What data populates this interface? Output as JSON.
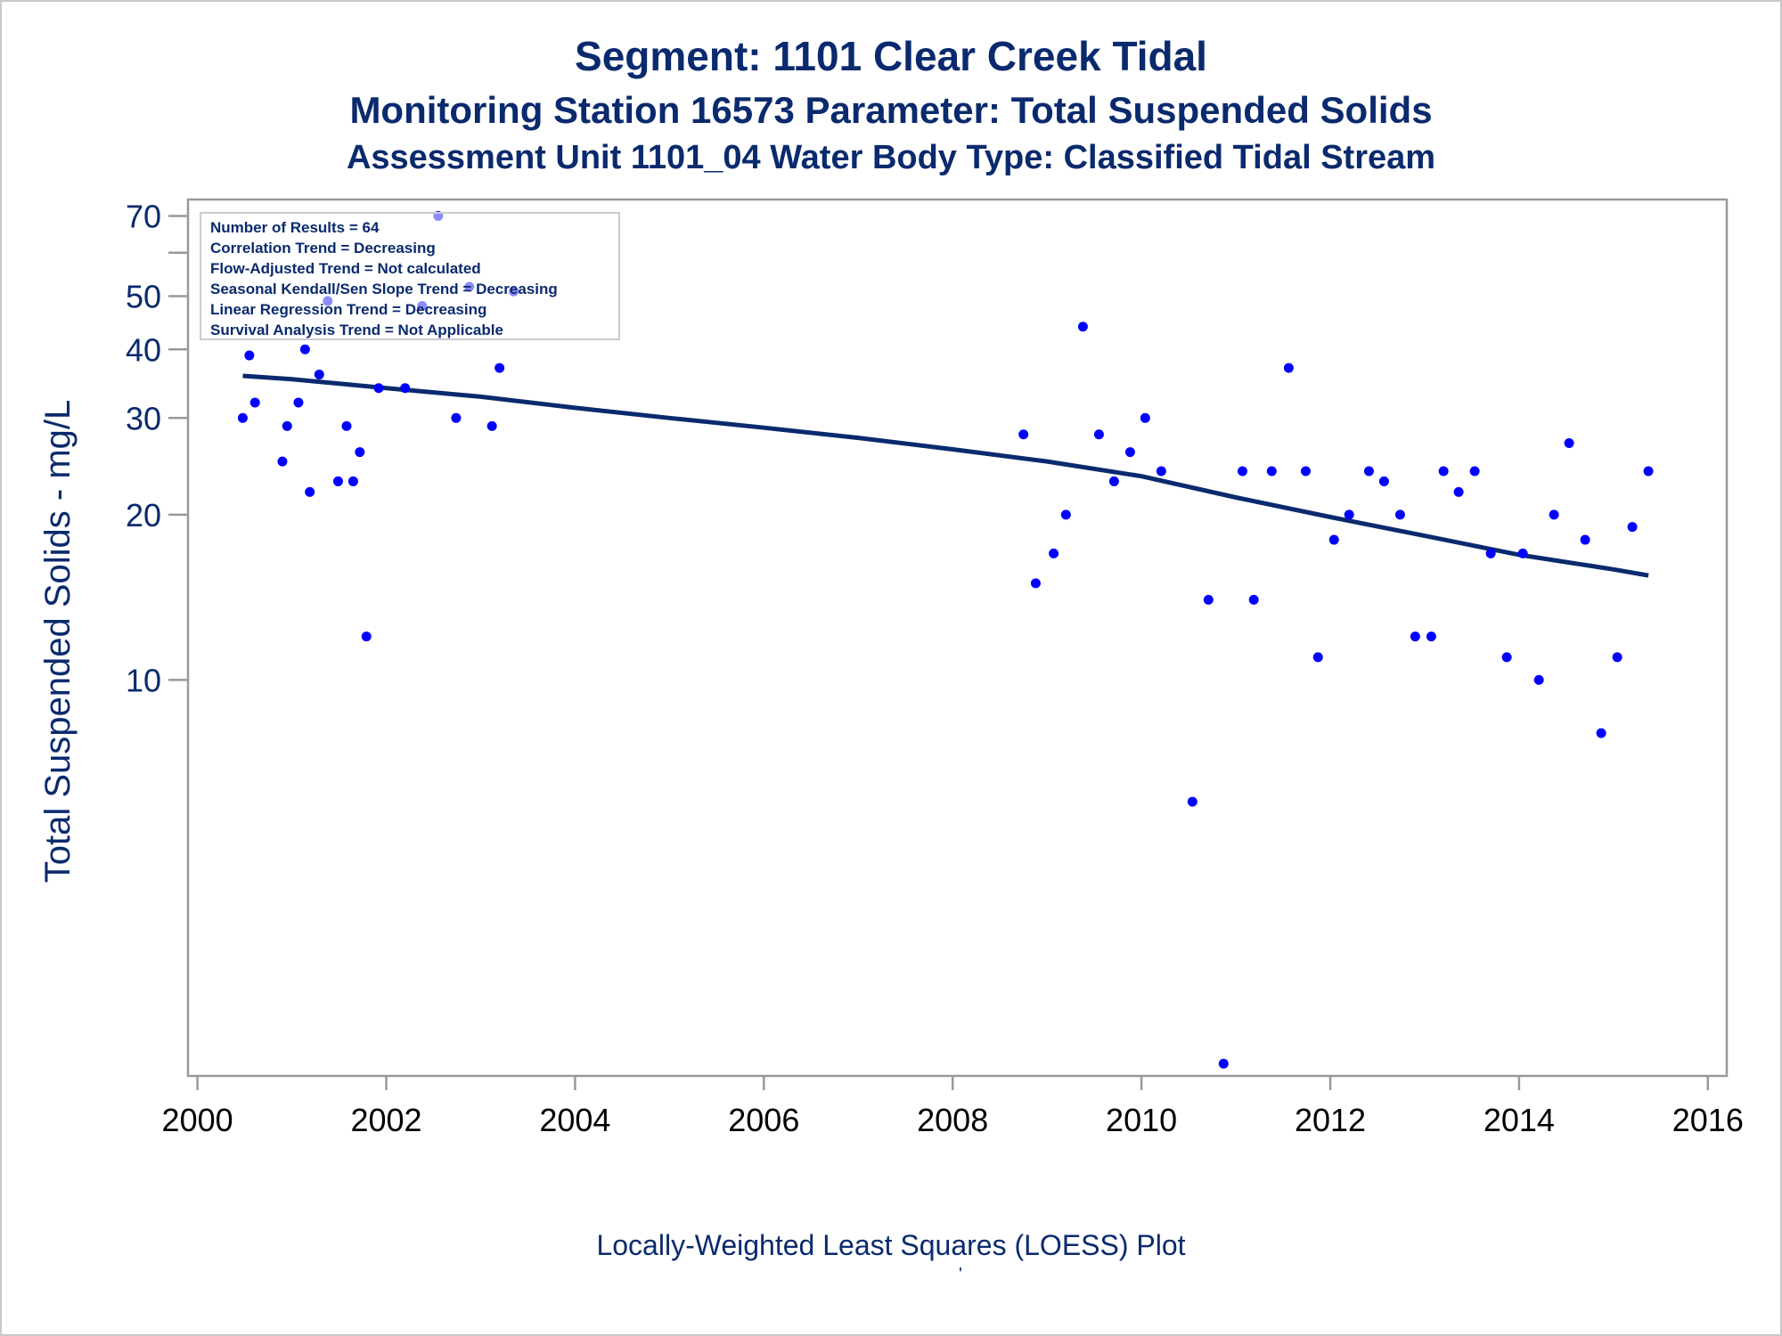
{
  "title": "Segment: 1101  Clear Creek Tidal",
  "subtitle1": "Monitoring Station 16573 Parameter: Total Suspended Solids",
  "subtitle2": "Assessment Unit 1101_04   Water Body Type: Classified Tidal Stream",
  "footnote": "Locally-Weighted Least Squares (LOESS) Plot",
  "footnote_mark": "'",
  "colors": {
    "text": "#0a2a6e",
    "points": "#0000ff",
    "trend": "#0a2a6e",
    "frame": "#999999"
  },
  "chart_data": {
    "type": "scatter",
    "title": "Segment: 1101  Clear Creek Tidal",
    "ylabel": "Total Suspended Solids - mg/L",
    "xlabel": "",
    "x_ticks": [
      2000,
      2002,
      2004,
      2006,
      2008,
      2010,
      2012,
      2014,
      2016
    ],
    "y_ticks": [
      10,
      20,
      30,
      40,
      50,
      70
    ],
    "y_minor_ticks": [
      60
    ],
    "xlim": [
      1999.9,
      2016.2
    ],
    "ylim": [
      1.9,
      75
    ],
    "y_scale": "log",
    "grid": false,
    "legend_title": "",
    "legend": [
      "Number of Results = 64",
      "Correlation Trend = Decreasing",
      "Flow-Adjusted Trend = Not calculated",
      "Seasonal Kendall/Sen Slope Trend = Decreasing",
      "Linear Regression Trend = Decreasing",
      "Survival Analysis Trend = Not Applicable"
    ],
    "legend_position": "top-left",
    "series": [
      {
        "type": "scatter",
        "x": [
          2000.48,
          2000.55,
          2000.61,
          2000.9,
          2000.95,
          2001.07,
          2001.14,
          2001.19,
          2001.29,
          2001.38,
          2001.49,
          2001.58,
          2001.65,
          2001.72,
          2001.79,
          2001.92,
          2002.2,
          2002.38,
          2002.55,
          2002.74,
          2002.88,
          2003.12,
          2003.2,
          2003.35,
          2008.75,
          2008.88,
          2009.07,
          2009.2,
          2009.38,
          2009.55,
          2009.71,
          2009.88,
          2010.04,
          2010.21,
          2010.54,
          2010.71,
          2010.87,
          2011.07,
          2011.19,
          2011.38,
          2011.56,
          2011.74,
          2011.87,
          2012.04,
          2012.2,
          2012.41,
          2012.57,
          2012.74,
          2012.9,
          2013.07,
          2013.2,
          2013.36,
          2013.53,
          2013.7,
          2013.87,
          2014.04,
          2014.21,
          2014.37,
          2014.53,
          2014.7,
          2014.87,
          2015.04,
          2015.2,
          2015.37
        ],
        "y": [
          30,
          39,
          32,
          25,
          29,
          32,
          40,
          22,
          36,
          49,
          23,
          29,
          23,
          26,
          12,
          34,
          34,
          48,
          70,
          30,
          52,
          29,
          37,
          51,
          28,
          15,
          17,
          20,
          44,
          28,
          23,
          26,
          30,
          24,
          6,
          14,
          2,
          24,
          14,
          24,
          37,
          24,
          11,
          18,
          20,
          24,
          23,
          20,
          12,
          12,
          24,
          22,
          24,
          17,
          11,
          17,
          10,
          20,
          27,
          18,
          8,
          11,
          19,
          24
        ]
      },
      {
        "type": "line",
        "name": "",
        "x": [
          2000.48,
          2001,
          2002,
          2003,
          2004,
          2005,
          2006,
          2007,
          2008,
          2009,
          2010,
          2011,
          2012,
          2013,
          2014,
          2015,
          2015.37
        ],
        "y": [
          35.8,
          35.3,
          34.0,
          32.8,
          31.3,
          30.0,
          28.8,
          27.6,
          26.3,
          25.0,
          23.5,
          21.5,
          19.8,
          18.3,
          16.9,
          15.9,
          15.5
        ]
      }
    ]
  }
}
